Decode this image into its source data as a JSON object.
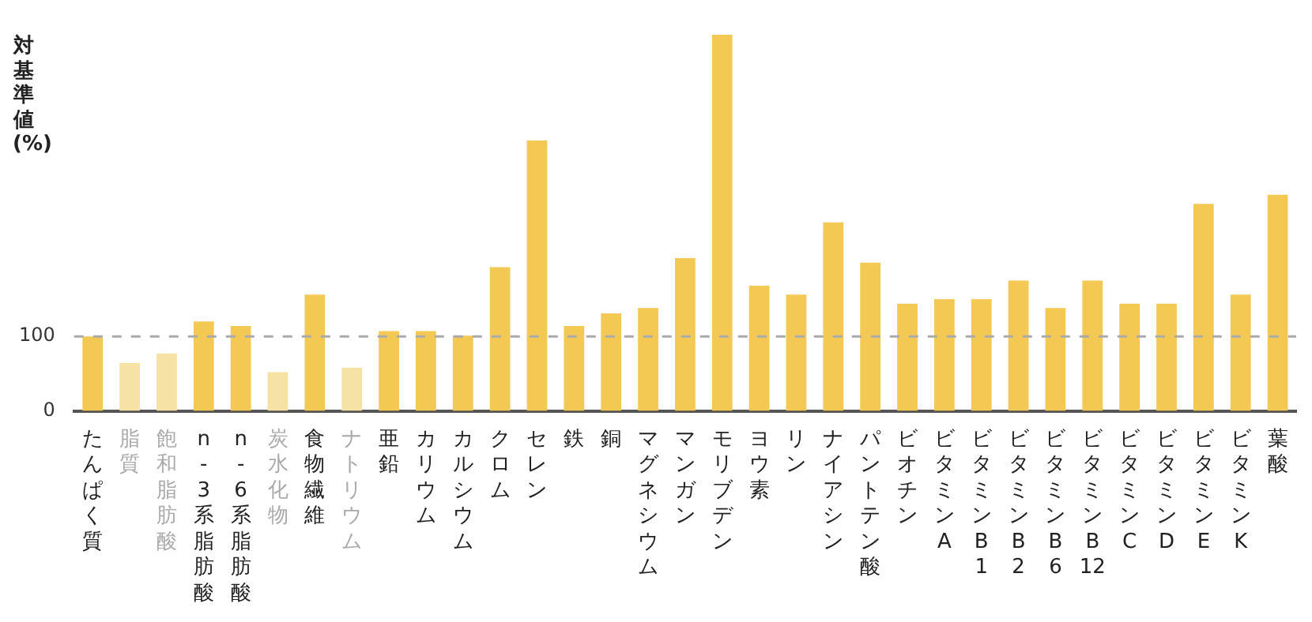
{
  "chart_data": {
    "type": "bar",
    "ylabel": "対基準値(%)",
    "categories": [
      "たんぱく質",
      "脂質",
      "飽和脂肪酸",
      "n-3系脂肪酸",
      "n-6系脂肪酸",
      "炭水化物",
      "食物繊維",
      "ナトリウム",
      "亜鉛",
      "カリウム",
      "カルシウム",
      "クロム",
      "セレン",
      "鉄",
      "銅",
      "マグネシウム",
      "マンガン",
      "モリブデン",
      "ヨウ素",
      "リン",
      "ナイアシン",
      "パントテン酸",
      "ビオチン",
      "ビタミンA",
      "ビタミンB1",
      "ビタミンB2",
      "ビタミンB6",
      "ビタミンB12",
      "ビタミンC",
      "ビタミンD",
      "ビタミンE",
      "ビタミンK",
      "葉酸"
    ],
    "values": [
      100,
      64,
      77,
      120,
      114,
      52,
      156,
      58,
      107,
      107,
      101,
      193,
      363,
      114,
      131,
      138,
      205,
      505,
      168,
      156,
      253,
      199,
      144,
      150,
      150,
      175,
      138,
      175,
      144,
      144,
      278,
      156,
      290
    ],
    "colors": [
      "#f3c853",
      "#f7e2a6",
      "#f7e2a6",
      "#f3c853",
      "#f3c853",
      "#f7e2a6",
      "#f3c853",
      "#f7e2a6",
      "#f3c853",
      "#f3c853",
      "#f3c853",
      "#f3c853",
      "#f3c853",
      "#f3c853",
      "#f3c853",
      "#f3c853",
      "#f3c853",
      "#f3c853",
      "#f3c853",
      "#f3c853",
      "#f3c853",
      "#f3c853",
      "#f3c853",
      "#f3c853",
      "#f3c853",
      "#f3c853",
      "#f3c853",
      "#f3c853",
      "#f3c853",
      "#f3c853",
      "#f3c853",
      "#f3c853",
      "#f3c853"
    ],
    "ylim": [
      0,
      505
    ],
    "yticks": [
      0,
      100
    ],
    "grid": false,
    "legend": false,
    "ref_lines": [
      {
        "axis": "y",
        "value": 100,
        "color": "#aaaaaa",
        "line_style": "dashed"
      }
    ]
  }
}
